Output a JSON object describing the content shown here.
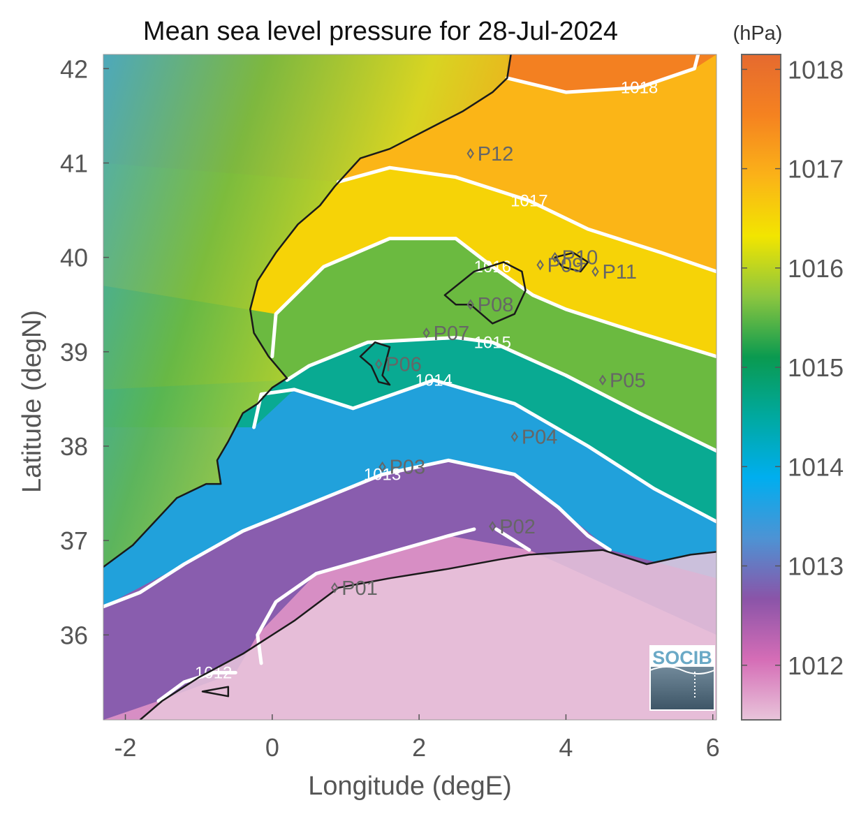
{
  "chart_data": {
    "type": "heatmap",
    "title": "Mean sea level pressure for 28-Jul-2024",
    "xlabel": "Longitude (degE)",
    "ylabel": "Latitude (degN)",
    "xlim": [
      -2.3,
      6.05
    ],
    "ylim": [
      35.1,
      42.15
    ],
    "xticks": [
      -2,
      0,
      2,
      4,
      6
    ],
    "yticks": [
      36,
      37,
      38,
      39,
      40,
      41,
      42
    ],
    "xtick_labels": [
      "-2",
      "0",
      "2",
      "4",
      "6"
    ],
    "ytick_labels": [
      "36",
      "37",
      "38",
      "39",
      "40",
      "41",
      "42"
    ],
    "colorbar": {
      "units": "(hPa)",
      "range": [
        1011.45,
        1018.15
      ],
      "ticks": [
        1012,
        1013,
        1014,
        1015,
        1016,
        1017,
        1018
      ],
      "tick_labels": [
        "1012",
        "1013",
        "1014",
        "1015",
        "1016",
        "1017",
        "1018"
      ],
      "colors": [
        "#e8c4da",
        "#d56db6",
        "#8a54a8",
        "#4d93d4",
        "#00aeef",
        "#00a9a0",
        "#0a9a50",
        "#8cc63f",
        "#f2e500",
        "#fbb218",
        "#f58220",
        "#e56a2f"
      ]
    },
    "contours": [
      {
        "level": 1012,
        "label": "1012",
        "points": [
          [
            -1.55,
            35.3
          ],
          [
            -1.2,
            35.5
          ],
          [
            -0.8,
            35.6
          ],
          [
            -0.5,
            35.6
          ]
        ],
        "points2": [
          [
            -0.15,
            35.7
          ],
          [
            -0.2,
            36.0
          ],
          [
            0.05,
            36.35
          ],
          [
            0.6,
            36.65
          ],
          [
            1.5,
            36.85
          ],
          [
            2.4,
            37.05
          ],
          [
            2.75,
            37.12
          ]
        ],
        "points3": [
          [
            3.05,
            37.12
          ],
          [
            3.5,
            36.9
          ]
        ]
      },
      {
        "level": 1013,
        "label": "1013",
        "points": [
          [
            -2.3,
            36.3
          ],
          [
            -1.8,
            36.45
          ],
          [
            -1.2,
            36.75
          ],
          [
            -0.4,
            37.1
          ],
          [
            0.55,
            37.4
          ],
          [
            1.5,
            37.7
          ],
          [
            2.4,
            37.85
          ],
          [
            3.3,
            37.7
          ],
          [
            3.9,
            37.35
          ],
          [
            4.3,
            37.05
          ],
          [
            4.6,
            36.9
          ]
        ]
      },
      {
        "level": 1014,
        "label": "1014",
        "points": [
          [
            -0.25,
            38.2
          ],
          [
            -0.15,
            38.55
          ],
          [
            0.3,
            38.6
          ],
          [
            1.1,
            38.4
          ],
          [
            2.2,
            38.7
          ],
          [
            3.3,
            38.45
          ],
          [
            4.3,
            38.0
          ],
          [
            5.2,
            37.55
          ],
          [
            6.05,
            37.2
          ]
        ]
      },
      {
        "level": 1015,
        "label": "1015",
        "points": [
          [
            0.2,
            38.7
          ],
          [
            0.5,
            38.85
          ],
          [
            1.3,
            39.1
          ],
          [
            2.5,
            39.15
          ],
          [
            3.0,
            39.1
          ],
          [
            4.0,
            38.75
          ],
          [
            5.0,
            38.35
          ],
          [
            6.05,
            37.95
          ]
        ]
      },
      {
        "level": 1016,
        "label": "1016",
        "points": [
          [
            0.0,
            38.95
          ],
          [
            0.05,
            39.4
          ],
          [
            0.7,
            39.9
          ],
          [
            1.6,
            40.2
          ],
          [
            2.5,
            40.2
          ],
          [
            3.0,
            39.9
          ],
          [
            3.55,
            39.6
          ],
          [
            4.0,
            39.45
          ],
          [
            5.0,
            39.2
          ],
          [
            6.05,
            38.95
          ]
        ]
      },
      {
        "level": 1017,
        "label": "1017",
        "points": [
          [
            0.9,
            40.8
          ],
          [
            1.6,
            40.95
          ],
          [
            2.5,
            40.85
          ],
          [
            3.5,
            40.6
          ],
          [
            4.3,
            40.3
          ],
          [
            5.3,
            40.05
          ],
          [
            6.05,
            39.85
          ]
        ]
      },
      {
        "level": 1018,
        "label": "1018",
        "points": [
          [
            3.2,
            41.9
          ],
          [
            4.0,
            41.75
          ],
          [
            5.0,
            41.8
          ],
          [
            5.75,
            42.0
          ],
          [
            5.8,
            42.15
          ]
        ]
      }
    ],
    "stations": [
      {
        "label": "P01",
        "lon": 0.85,
        "lat": 36.5
      },
      {
        "label": "P02",
        "lon": 3.0,
        "lat": 37.15
      },
      {
        "label": "P03",
        "lon": 1.5,
        "lat": 37.78
      },
      {
        "label": "P04",
        "lon": 3.3,
        "lat": 38.1
      },
      {
        "label": "P05",
        "lon": 4.5,
        "lat": 38.7
      },
      {
        "label": "P06",
        "lon": 1.45,
        "lat": 38.87
      },
      {
        "label": "P07",
        "lon": 2.1,
        "lat": 39.2
      },
      {
        "label": "P08",
        "lon": 2.7,
        "lat": 39.5
      },
      {
        "label": "P09",
        "lon": 3.65,
        "lat": 39.92
      },
      {
        "label": "P10",
        "lon": 3.85,
        "lat": 40.0
      },
      {
        "label": "P11",
        "lon": 4.4,
        "lat": 39.85
      },
      {
        "label": "P12",
        "lon": 2.7,
        "lat": 41.1
      }
    ],
    "coastline": [
      [
        -2.3,
        36.72
      ],
      [
        -1.9,
        36.95
      ],
      [
        -1.6,
        37.2
      ],
      [
        -1.3,
        37.45
      ],
      [
        -0.9,
        37.6
      ],
      [
        -0.7,
        37.6
      ],
      [
        -0.72,
        37.7
      ],
      [
        -0.75,
        37.85
      ],
      [
        -0.6,
        38.05
      ],
      [
        -0.5,
        38.2
      ],
      [
        -0.4,
        38.35
      ],
      [
        -0.2,
        38.45
      ],
      [
        0.0,
        38.62
      ],
      [
        0.2,
        38.72
      ],
      [
        -0.05,
        38.95
      ],
      [
        -0.25,
        39.2
      ],
      [
        -0.3,
        39.45
      ],
      [
        -0.2,
        39.75
      ],
      [
        0.05,
        40.05
      ],
      [
        0.35,
        40.35
      ],
      [
        0.65,
        40.55
      ],
      [
        0.85,
        40.75
      ],
      [
        1.2,
        41.05
      ],
      [
        1.6,
        41.15
      ],
      [
        2.1,
        41.35
      ],
      [
        2.6,
        41.55
      ],
      [
        3.0,
        41.75
      ],
      [
        3.2,
        41.9
      ],
      [
        3.25,
        42.15
      ]
    ],
    "coastline_africa": [
      [
        -1.8,
        35.1
      ],
      [
        -1.5,
        35.3
      ],
      [
        -1.0,
        35.55
      ],
      [
        -0.4,
        35.8
      ],
      [
        0.3,
        36.15
      ],
      [
        0.9,
        36.5
      ],
      [
        1.6,
        36.6
      ],
      [
        2.4,
        36.7
      ],
      [
        3.1,
        36.8
      ],
      [
        3.5,
        36.85
      ],
      [
        4.5,
        36.9
      ],
      [
        5.1,
        36.75
      ],
      [
        5.7,
        36.85
      ],
      [
        6.05,
        36.88
      ]
    ],
    "islands": [
      [
        [
          1.2,
          38.95
        ],
        [
          1.4,
          39.1
        ],
        [
          1.6,
          39.05
        ],
        [
          1.55,
          38.9
        ],
        [
          1.5,
          38.75
        ],
        [
          1.6,
          38.65
        ],
        [
          1.45,
          38.68
        ],
        [
          1.35,
          38.85
        ],
        [
          1.2,
          38.95
        ]
      ],
      [
        [
          2.35,
          39.6
        ],
        [
          2.75,
          39.85
        ],
        [
          3.15,
          39.95
        ],
        [
          3.4,
          39.85
        ],
        [
          3.45,
          39.65
        ],
        [
          3.3,
          39.4
        ],
        [
          3.0,
          39.3
        ],
        [
          2.7,
          39.5
        ],
        [
          2.5,
          39.5
        ],
        [
          2.35,
          39.6
        ]
      ],
      [
        [
          3.85,
          40.0
        ],
        [
          4.1,
          40.05
        ],
        [
          4.3,
          39.95
        ],
        [
          4.2,
          39.85
        ],
        [
          3.95,
          39.9
        ],
        [
          3.85,
          40.0
        ]
      ],
      [
        [
          -0.95,
          35.4
        ],
        [
          -0.6,
          35.45
        ],
        [
          -0.6,
          35.35
        ],
        [
          -0.95,
          35.4
        ]
      ]
    ],
    "logo": "SOCIB"
  }
}
